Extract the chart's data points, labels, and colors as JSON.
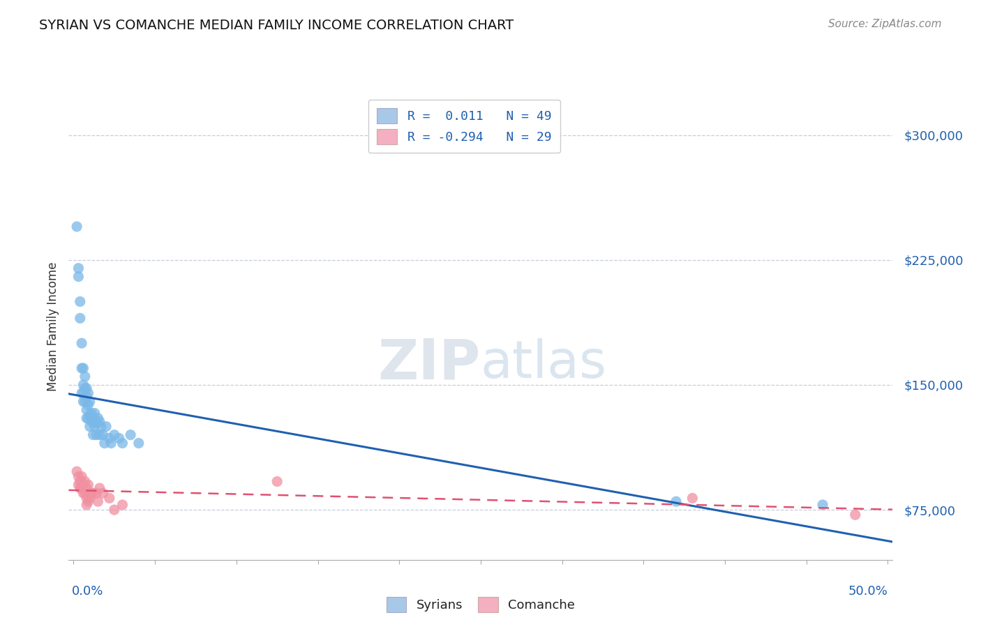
{
  "title": "SYRIAN VS COMANCHE MEDIAN FAMILY INCOME CORRELATION CHART",
  "source": "Source: ZipAtlas.com",
  "ylabel": "Median Family Income",
  "yticks": [
    75000,
    150000,
    225000,
    300000
  ],
  "ytick_labels": [
    "$75,000",
    "$150,000",
    "$225,000",
    "$300,000"
  ],
  "xlim": [
    -0.003,
    0.503
  ],
  "ylim": [
    45000,
    325000
  ],
  "watermark_zip": "ZIP",
  "watermark_atlas": "atlas",
  "legend_r1": "R =  0.011   N = 49",
  "legend_r2": "R = -0.294   N = 29",
  "legend_color1": "#a8c8e8",
  "legend_color2": "#f4b0c0",
  "syrian_color": "#7ab8e8",
  "comanche_color": "#f090a0",
  "syrian_line_color": "#2060b0",
  "comanche_line_color": "#e05070",
  "syrians_x": [
    0.002,
    0.003,
    0.003,
    0.004,
    0.004,
    0.005,
    0.005,
    0.005,
    0.006,
    0.006,
    0.006,
    0.006,
    0.007,
    0.007,
    0.007,
    0.008,
    0.008,
    0.008,
    0.008,
    0.009,
    0.009,
    0.009,
    0.01,
    0.01,
    0.01,
    0.011,
    0.011,
    0.012,
    0.012,
    0.013,
    0.013,
    0.014,
    0.014,
    0.015,
    0.016,
    0.016,
    0.017,
    0.018,
    0.019,
    0.02,
    0.022,
    0.023,
    0.025,
    0.028,
    0.03,
    0.035,
    0.04,
    0.37,
    0.46
  ],
  "syrians_y": [
    245000,
    215000,
    220000,
    200000,
    190000,
    175000,
    160000,
    145000,
    160000,
    150000,
    145000,
    140000,
    155000,
    148000,
    140000,
    148000,
    143000,
    135000,
    130000,
    145000,
    138000,
    130000,
    140000,
    132000,
    125000,
    133000,
    128000,
    130000,
    120000,
    133000,
    125000,
    127000,
    120000,
    130000,
    128000,
    120000,
    125000,
    120000,
    115000,
    125000,
    118000,
    115000,
    120000,
    118000,
    115000,
    120000,
    115000,
    80000,
    78000
  ],
  "comanche_x": [
    0.002,
    0.003,
    0.003,
    0.004,
    0.004,
    0.005,
    0.005,
    0.006,
    0.006,
    0.007,
    0.007,
    0.008,
    0.008,
    0.008,
    0.009,
    0.009,
    0.01,
    0.011,
    0.012,
    0.014,
    0.015,
    0.016,
    0.018,
    0.022,
    0.025,
    0.03,
    0.125,
    0.38,
    0.48
  ],
  "comanche_y": [
    98000,
    95000,
    90000,
    92000,
    88000,
    95000,
    88000,
    90000,
    85000,
    92000,
    85000,
    88000,
    82000,
    78000,
    90000,
    80000,
    82000,
    85000,
    85000,
    85000,
    80000,
    88000,
    85000,
    82000,
    75000,
    78000,
    92000,
    82000,
    72000
  ]
}
